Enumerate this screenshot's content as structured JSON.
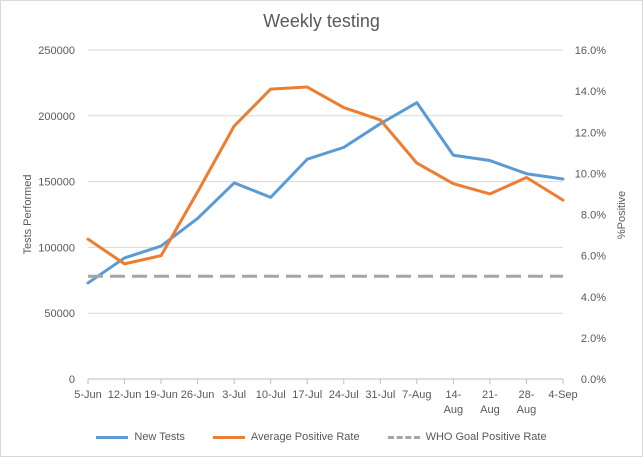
{
  "chart_data": {
    "type": "line",
    "title": "Weekly testing",
    "ylabel": "Tests Performed",
    "y2label": "%Positive",
    "categories": [
      "5-Jun",
      "12-Jun",
      "19-Jun",
      "26-Jun",
      "3-Jul",
      "10-Jul",
      "17-Jul",
      "24-Jul",
      "31-Jul",
      "7-Aug",
      "14-Aug",
      "21-Aug",
      "28-Aug",
      "4-Sep"
    ],
    "ylim": [
      0,
      250000
    ],
    "yticks": [
      "0",
      "50000",
      "100000",
      "150000",
      "200000",
      "250000"
    ],
    "y2lim": [
      0,
      16
    ],
    "y2ticks": [
      "0.0%",
      "2.0%",
      "4.0%",
      "6.0%",
      "8.0%",
      "10.0%",
      "12.0%",
      "14.0%",
      "16.0%"
    ],
    "grid": true,
    "legend_position": "bottom",
    "series": [
      {
        "name": "New Tests",
        "axis": "left",
        "color": "#5b9bd5",
        "style": "solid",
        "values": [
          73000,
          92000,
          101000,
          122000,
          149000,
          138000,
          167000,
          176000,
          194000,
          210000,
          170000,
          166000,
          156000,
          152000
        ]
      },
      {
        "name": "Average Positive Rate",
        "axis": "right",
        "color": "#ed7d31",
        "style": "solid",
        "values": [
          6.8,
          5.6,
          6.0,
          9.1,
          12.3,
          14.1,
          14.2,
          13.2,
          12.6,
          10.5,
          9.5,
          9.0,
          9.8,
          8.7
        ]
      },
      {
        "name": "WHO Goal Positive Rate",
        "axis": "right",
        "color": "#a5a5a5",
        "style": "dashed",
        "values": [
          5.0,
          5.0,
          5.0,
          5.0,
          5.0,
          5.0,
          5.0,
          5.0,
          5.0,
          5.0,
          5.0,
          5.0,
          5.0,
          5.0
        ]
      }
    ]
  }
}
